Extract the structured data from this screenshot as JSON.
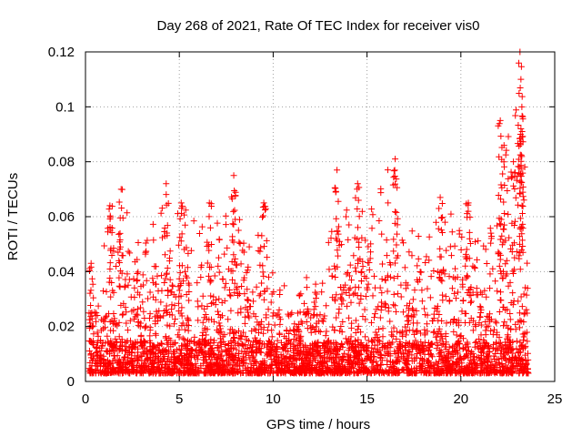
{
  "chart_data": {
    "type": "scatter",
    "title": "Day 268 of 2021, Rate Of TEC Index for receiver vis0",
    "xlabel": "GPS time / hours",
    "ylabel": "ROTI / TECUs",
    "xlim": [
      0,
      25
    ],
    "ylim": [
      0,
      0.12
    ],
    "xticks": [
      0,
      5,
      10,
      15,
      20,
      25
    ],
    "xtick_labels": [
      "0",
      "5",
      "10",
      "15",
      "20",
      "25"
    ],
    "yticks": [
      0,
      0.02,
      0.04,
      0.06,
      0.08,
      0.1,
      0.12
    ],
    "ytick_labels": [
      "0",
      "0.02",
      "0.04",
      "0.06",
      "0.08",
      "0.1",
      "0.12"
    ],
    "grid": true,
    "marker": "+",
    "color": "#ff0000",
    "series": [
      {
        "name": "vis0",
        "x_range": [
          0.2,
          23.6
        ],
        "baseline": [
          0.003,
          0.015
        ],
        "envelope": [
          [
            0.2,
            0.045
          ],
          [
            1.0,
            0.05
          ],
          [
            2.0,
            0.07
          ],
          [
            3.0,
            0.055
          ],
          [
            4.3,
            0.072
          ],
          [
            5.0,
            0.065
          ],
          [
            6.5,
            0.065
          ],
          [
            8.0,
            0.075
          ],
          [
            9.5,
            0.065
          ],
          [
            10.5,
            0.04
          ],
          [
            12.5,
            0.045
          ],
          [
            13.4,
            0.077
          ],
          [
            14.5,
            0.072
          ],
          [
            16.5,
            0.08
          ],
          [
            17.5,
            0.062
          ],
          [
            19.0,
            0.067
          ],
          [
            20.5,
            0.065
          ],
          [
            21.5,
            0.06
          ],
          [
            22.3,
            0.095
          ],
          [
            23.2,
            0.12
          ],
          [
            23.6,
            0.06
          ]
        ],
        "peaks": [
          [
            0.3,
            0.043
          ],
          [
            1.3,
            0.064
          ],
          [
            1.9,
            0.07
          ],
          [
            4.3,
            0.072
          ],
          [
            5.1,
            0.065
          ],
          [
            6.6,
            0.065
          ],
          [
            7.9,
            0.075
          ],
          [
            9.5,
            0.065
          ],
          [
            13.4,
            0.077
          ],
          [
            14.5,
            0.072
          ],
          [
            16.5,
            0.081
          ],
          [
            18.9,
            0.067
          ],
          [
            20.4,
            0.065
          ],
          [
            22.1,
            0.095
          ],
          [
            22.3,
            0.086
          ],
          [
            22.8,
            0.08
          ],
          [
            23.15,
            0.12
          ],
          [
            23.2,
            0.11
          ],
          [
            23.25,
            0.1
          ],
          [
            23.2,
            0.092
          ]
        ]
      }
    ]
  }
}
